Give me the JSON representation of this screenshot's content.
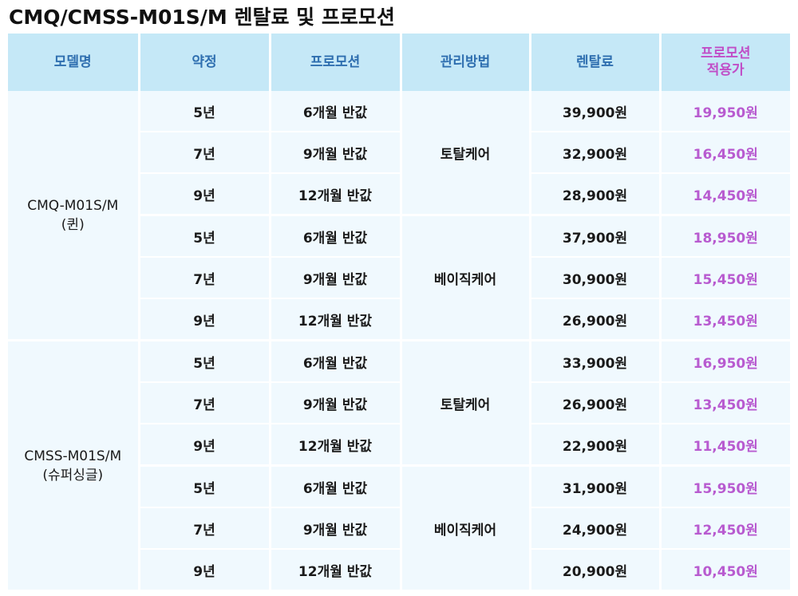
{
  "title": "CMQ/CMSS-M01S/M 렌탈료 및 프로모션",
  "headers": {
    "model": "모델명",
    "contract": "약정",
    "promotion": "프로모션",
    "care": "관리방법",
    "fee": "렌탈료",
    "promo_price_line1": "프로모션",
    "promo_price_line2": "적용가"
  },
  "models": [
    {
      "name": "CMQ-M01S/M",
      "sub": "(퀸)",
      "groups": [
        {
          "care": "토탈케어",
          "rows": [
            {
              "contract": "5년",
              "promotion": "6개월 반값",
              "fee": "39,900원",
              "promo_price": "19,950원"
            },
            {
              "contract": "7년",
              "promotion": "9개월 반값",
              "fee": "32,900원",
              "promo_price": "16,450원"
            },
            {
              "contract": "9년",
              "promotion": "12개월 반값",
              "fee": "28,900원",
              "promo_price": "14,450원"
            }
          ]
        },
        {
          "care": "베이직케어",
          "rows": [
            {
              "contract": "5년",
              "promotion": "6개월 반값",
              "fee": "37,900원",
              "promo_price": "18,950원"
            },
            {
              "contract": "7년",
              "promotion": "9개월 반값",
              "fee": "30,900원",
              "promo_price": "15,450원"
            },
            {
              "contract": "9년",
              "promotion": "12개월 반값",
              "fee": "26,900원",
              "promo_price": "13,450원"
            }
          ]
        }
      ]
    },
    {
      "name": "CMSS-M01S/M",
      "sub": "(슈퍼싱글)",
      "groups": [
        {
          "care": "토탈케어",
          "rows": [
            {
              "contract": "5년",
              "promotion": "6개월 반값",
              "fee": "33,900원",
              "promo_price": "16,950원"
            },
            {
              "contract": "7년",
              "promotion": "9개월 반값",
              "fee": "26,900원",
              "promo_price": "13,450원"
            },
            {
              "contract": "9년",
              "promotion": "12개월 반값",
              "fee": "22,900원",
              "promo_price": "11,450원"
            }
          ]
        },
        {
          "care": "베이직케어",
          "rows": [
            {
              "contract": "5년",
              "promotion": "6개월 반값",
              "fee": "31,900원",
              "promo_price": "15,950원"
            },
            {
              "contract": "7년",
              "promotion": "9개월 반값",
              "fee": "24,900원",
              "promo_price": "12,450원"
            },
            {
              "contract": "9년",
              "promotion": "12개월 반값",
              "fee": "20,900원",
              "promo_price": "10,450원"
            }
          ]
        }
      ]
    }
  ]
}
